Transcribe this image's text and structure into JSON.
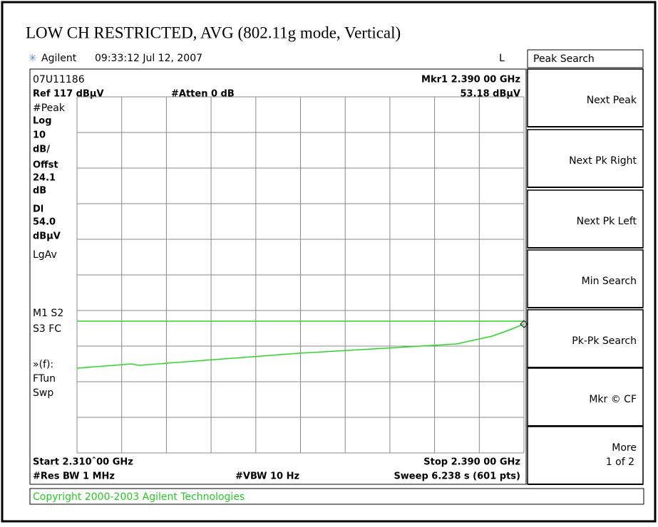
{
  "title": "LOW CH RESTRICTED, AVG (802.11g mode, Vertical)",
  "header": {
    "brand": "Agilent",
    "time": "09:33:12  Jul 12, 2007",
    "mode": "L"
  },
  "screen": {
    "file": "07U11186",
    "marker": "Mkr1  2.390 00 GHz",
    "ref": "Ref 117 dBµV",
    "atten": "#Atten 0 dB",
    "marker_value": "53.18 dBµV",
    "left_labels": [
      "#Peak",
      "Log",
      "10",
      "dB/",
      "Offst",
      "24.1",
      "dB",
      "Dl",
      "54.0",
      "dBµV",
      "LgAv",
      "M1  S2",
      "S3  FC",
      "»(f):",
      "FTun",
      "Swp"
    ],
    "start": "Start 2.310ˆ00 GHz",
    "stop": "Stop 2.390 00 GHz",
    "res_bw": "#Res BW 1 MHz",
    "vbw": "#VBW 10 Hz",
    "sweep": "Sweep 6.238 s (601 pts)"
  },
  "chart_data": {
    "type": "line",
    "xlim": [
      2.31,
      2.39
    ],
    "ylim": [
      17,
      117
    ],
    "display_line": 54,
    "x": [
      2.31,
      2.3198,
      2.3211,
      2.3345,
      2.3498,
      2.3651,
      2.3779,
      2.3843,
      2.3875,
      2.39
    ],
    "series": [
      {
        "color": "#22dd22",
        "values": [
          40.8,
          42.0,
          41.6,
          43.2,
          45.0,
          46.4,
          47.6,
          49.8,
          51.6,
          53.18
        ]
      }
    ]
  },
  "menu": {
    "title": "Peak Search",
    "keys": [
      "Next Peak",
      "Next Pk Right",
      "Next Pk Left",
      "Min Search",
      "Pk-Pk Search",
      "Mkr © CF",
      "More"
    ],
    "more_sub": "1 of 2"
  },
  "footer": "Copyright 2000-2003 Agilent Technologies"
}
